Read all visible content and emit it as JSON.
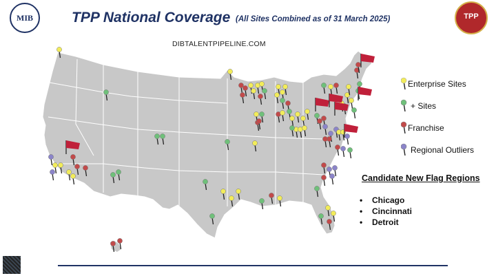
{
  "header": {
    "title": "TPP National Coverage",
    "subtitle": "(All Sites Combined as of 31 March 2025)",
    "url": "DIBTALENTPIPELINE.COM",
    "logo_left_text": "MIB",
    "logo_right_text": "TPP"
  },
  "legend": {
    "items": [
      {
        "label": "Enterprise Sites",
        "color": "#f2ec5a"
      },
      {
        "label": "+ Sites",
        "color": "#6fc07a"
      },
      {
        "label": "Franchise",
        "color": "#c24a4a"
      },
      {
        "label": "Regional Outliers",
        "color": "#8b84c9"
      }
    ]
  },
  "candidates": {
    "heading": "Candidate New Flag Regions",
    "items": [
      "Chicago",
      "Cincinnati",
      "Detroit"
    ]
  },
  "colors": {
    "map_fill": "#c8c8c8",
    "map_stroke": "#ffffff",
    "title": "#1f3264",
    "flag": "#c0203a"
  }
}
